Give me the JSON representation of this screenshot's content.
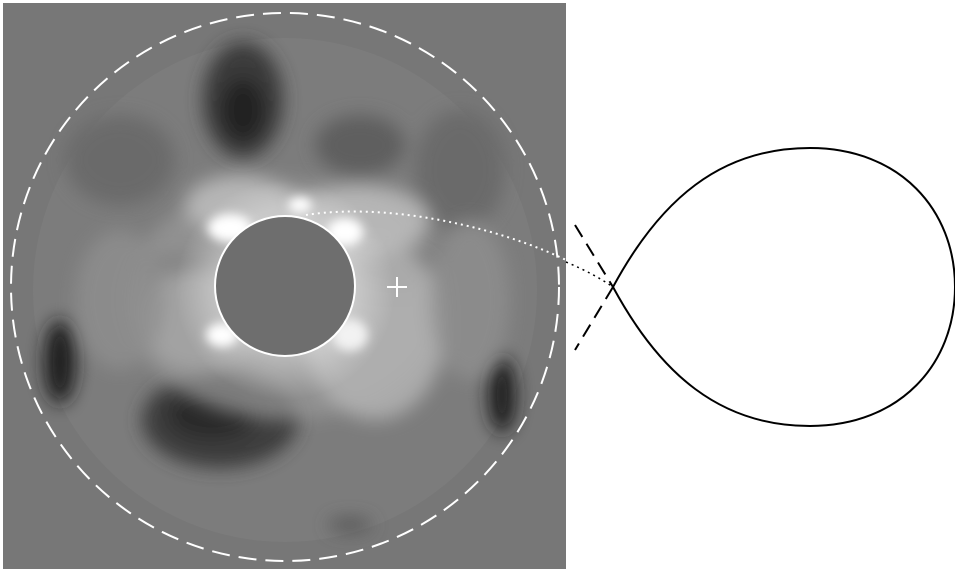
{
  "figure": {
    "background_color": "#ffffff",
    "panel_background": "#777777",
    "occulter_color": "#6e6e6e",
    "line_color": "#000000",
    "overlay_color": "#ffffff",
    "marker_icon": "plus-icon",
    "panels": [
      "coronagraph-image",
      "magnetic-loop-diagram"
    ]
  }
}
